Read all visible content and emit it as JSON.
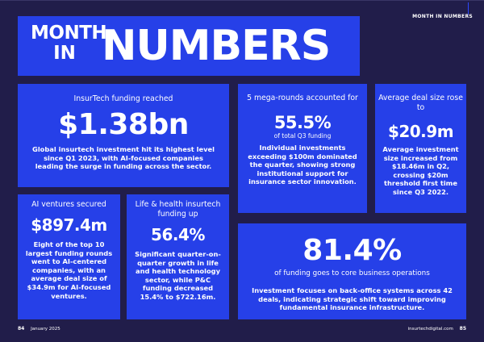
{
  "section_label": "MONTH IN NUMBERS",
  "title": {
    "line1": "MONTH",
    "line2": "IN",
    "line3": "NUMBERS"
  },
  "cards": {
    "funding": {
      "label": "InsurTech funding reached",
      "value": "$1.38bn",
      "body": "Global insurtech investment hit its highest level since Q1 2023, with AI-focused companies leading the surge in funding across the sector."
    },
    "mega_rounds": {
      "label": "5 mega-rounds accounted for",
      "value": "55.5%",
      "subtitle": "of total Q3 funding",
      "body": "Individual investments exceeding $100m dominated the quarter, showing strong institutional support for insurance sector innovation."
    },
    "deal_size": {
      "label": "Average deal size rose to",
      "value": "$20.9m",
      "body": "Average investment size increased from $18.46m in Q2, crossing $20m threshold first time since Q3 2022."
    },
    "ai_ventures": {
      "label": "AI ventures secured",
      "value": "$897.4m",
      "body": "Eight of the top 10 largest funding rounds went to AI-centered companies, with an average deal size of $34.9m for AI-focused ventures."
    },
    "life_health": {
      "label": "Life & health insurtech funding up",
      "value": "56.4%",
      "body": "Significant quarter-on-quarter growth in life and health technology sector, while P&C funding decreased 15.4% to $722.16m."
    },
    "core_business": {
      "value": "81.4%",
      "label": "of funding goes to core business operations",
      "body": "Investment focuses on back-office systems across 42 deals, indicating strategic shift toward improving fundamental insurance infrastructure."
    }
  },
  "footer": {
    "left_page": "84",
    "issue": "January 2025",
    "site": "insurtechdigital.com",
    "right_page": "85"
  },
  "colors": {
    "background": "#211d4a",
    "card": "#2640e8",
    "text": "#ffffff"
  }
}
